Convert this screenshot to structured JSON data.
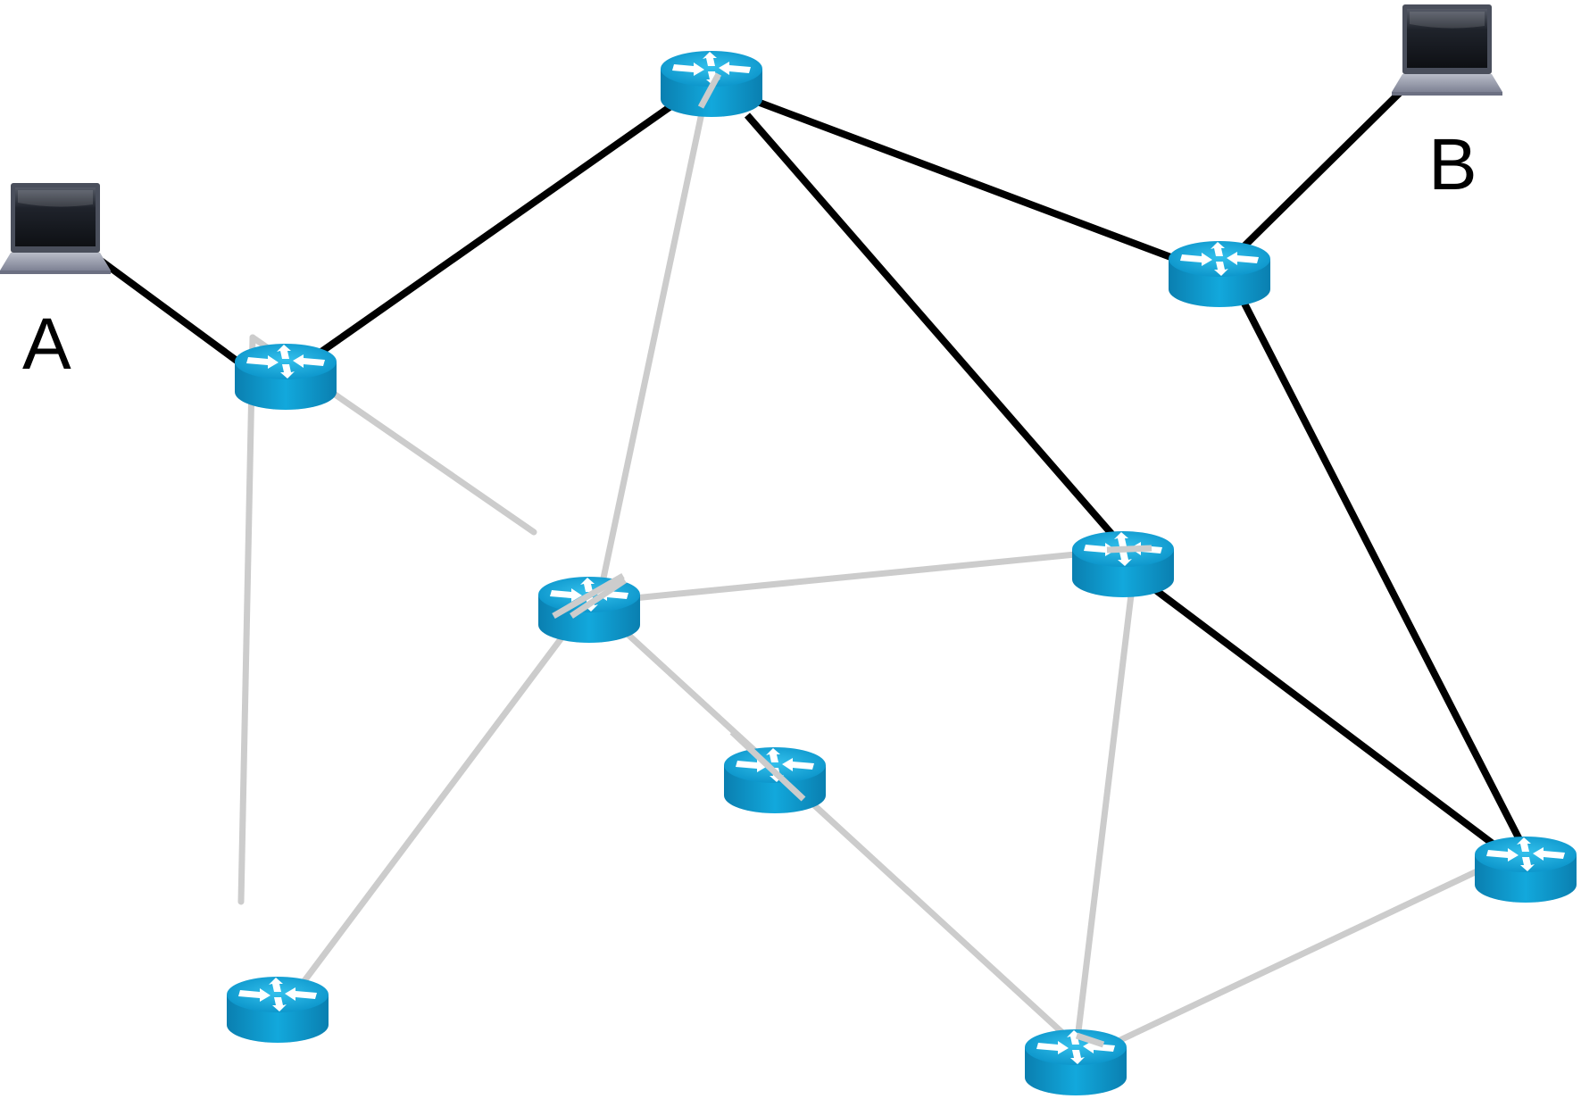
{
  "hosts": {
    "a": {
      "label": "A",
      "icon": "laptop-icon"
    },
    "b": {
      "label": "B",
      "icon": "laptop-icon"
    }
  },
  "routers": [
    {
      "id": "r-left",
      "icon": "router-icon"
    },
    {
      "id": "r-top",
      "icon": "router-icon"
    },
    {
      "id": "r-right-upper",
      "icon": "router-icon"
    },
    {
      "id": "r-center",
      "icon": "router-icon"
    },
    {
      "id": "r-center-right",
      "icon": "router-icon"
    },
    {
      "id": "r-center-lower",
      "icon": "router-icon"
    },
    {
      "id": "r-far-right",
      "icon": "router-icon"
    },
    {
      "id": "r-bottom-left",
      "icon": "router-icon"
    },
    {
      "id": "r-bottom-center",
      "icon": "router-icon"
    }
  ],
  "colors": {
    "active_link": "#000000",
    "idle_link": "#cccccc",
    "router_body": "#0095c8",
    "router_top": "#1aa9d9",
    "laptop_screen": "#1c1f26"
  }
}
